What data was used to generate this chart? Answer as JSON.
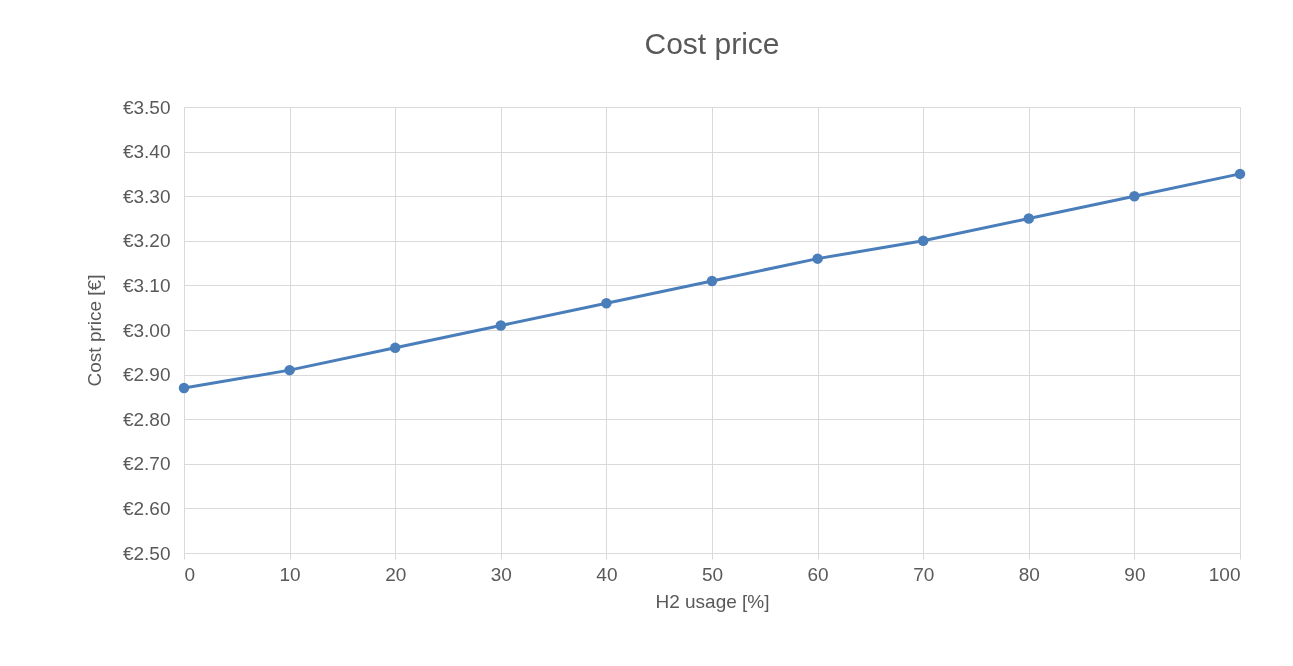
{
  "chart_data": {
    "type": "line",
    "title": "Cost  price",
    "xlabel": "H2 usage [%]",
    "ylabel": "Cost price [€]",
    "x": [
      0,
      10,
      20,
      30,
      40,
      50,
      60,
      70,
      80,
      90,
      100
    ],
    "series": [
      {
        "color": "#4a7ebb",
        "values": [
          2.87,
          2.91,
          2.96,
          3.01,
          3.06,
          3.11,
          3.16,
          3.2,
          3.25,
          3.3,
          3.35
        ]
      }
    ],
    "xlim": [
      0,
      100
    ],
    "xticks": [
      0,
      10,
      20,
      30,
      40,
      50,
      60,
      70,
      80,
      90,
      100
    ],
    "ylim": [
      2.5,
      3.5
    ],
    "yticks": [
      {
        "value": 2.5,
        "label": "€2.50"
      },
      {
        "value": 2.6,
        "label": "€2.60"
      },
      {
        "value": 2.7,
        "label": "€2.70"
      },
      {
        "value": 2.8,
        "label": "€2.80"
      },
      {
        "value": 2.9,
        "label": "€2.90"
      },
      {
        "value": 3.0,
        "label": "€3.00"
      },
      {
        "value": 3.1,
        "label": "€3.10"
      },
      {
        "value": 3.2,
        "label": "€3.20"
      },
      {
        "value": 3.3,
        "label": "€3.30"
      },
      {
        "value": 3.4,
        "label": "€3.40"
      },
      {
        "value": 3.5,
        "label": "€3.50"
      }
    ],
    "grid": true,
    "marker": "circle",
    "line_style": "solid"
  }
}
